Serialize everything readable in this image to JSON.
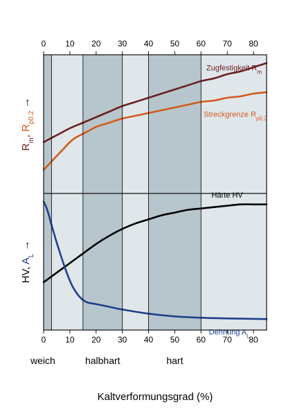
{
  "chart_data": {
    "type": "line",
    "title": "",
    "xlabel": "Kaltverformungsgrad (%)",
    "xlim": [
      0,
      85
    ],
    "x_ticks": [
      0,
      10,
      20,
      30,
      40,
      50,
      60,
      70,
      80
    ],
    "grid": false,
    "bands": [
      {
        "from": 0,
        "to": 3,
        "shade": "dark"
      },
      {
        "from": 3,
        "to": 15,
        "shade": "light"
      },
      {
        "from": 15,
        "to": 30,
        "shade": "dark"
      },
      {
        "from": 30,
        "to": 40,
        "shade": "light"
      },
      {
        "from": 40,
        "to": 60,
        "shade": "dark"
      },
      {
        "from": 60,
        "to": 85,
        "shade": "light"
      }
    ],
    "band_colors": {
      "dark": "#b7c6cd",
      "light": "#dfe7eb"
    },
    "regions": [
      {
        "label": "weich",
        "x": 0
      },
      {
        "label": "halbhart",
        "x": 22.5
      },
      {
        "label": "hart",
        "x": 50
      }
    ],
    "panels": [
      {
        "ylabel": {
          "arrow": "→",
          "parts": [
            {
              "t": "R",
              "style": "normal",
              "color": "#6b2020"
            },
            {
              "t": "m",
              "style": "sub",
              "color": "#6b2020"
            },
            {
              "t": ", ",
              "style": "normal",
              "color": "#6b2020"
            },
            {
              "t": "R",
              "style": "normal",
              "color": "#d4581a"
            },
            {
              "t": "p0.2",
              "style": "sub",
              "color": "#d4581a"
            }
          ]
        },
        "series": [
          {
            "name": "Zugfestigkeit Rm",
            "label_main": "Zugfestigkeit R",
            "label_sub": "m",
            "label_x": 62,
            "color": "#6b2020",
            "x": [
              0,
              5,
              10,
              15,
              20,
              25,
              30,
              35,
              40,
              45,
              50,
              55,
              60,
              65,
              70,
              75,
              80,
              85
            ],
            "y": [
              0.37,
              0.42,
              0.47,
              0.51,
              0.55,
              0.59,
              0.63,
              0.66,
              0.69,
              0.72,
              0.75,
              0.78,
              0.81,
              0.83,
              0.86,
              0.88,
              0.91,
              0.94
            ]
          },
          {
            "name": "Streckgrenze Rp0.2",
            "label_main": "Streckgrenze R",
            "label_sub": "p0.2",
            "label_x": 61,
            "color": "#d4581a",
            "x": [
              0,
              2,
              5,
              8,
              10,
              12,
              15,
              18,
              20,
              25,
              30,
              35,
              40,
              45,
              50,
              55,
              60,
              65,
              70,
              75,
              80,
              85
            ],
            "y": [
              0.17,
              0.21,
              0.27,
              0.33,
              0.37,
              0.4,
              0.43,
              0.46,
              0.48,
              0.51,
              0.54,
              0.56,
              0.58,
              0.6,
              0.62,
              0.64,
              0.66,
              0.67,
              0.69,
              0.7,
              0.72,
              0.73
            ]
          }
        ]
      },
      {
        "ylabel": {
          "arrow": "→",
          "parts": [
            {
              "t": "HV, ",
              "style": "normal",
              "color": "#000000"
            },
            {
              "t": "A",
              "style": "normal",
              "color": "#1f3f8a"
            },
            {
              "t": "L",
              "style": "sub",
              "color": "#1f3f8a"
            }
          ]
        },
        "series": [
          {
            "name": "Härte HV",
            "label_main": "Härte HV",
            "label_sub": "",
            "label_x": 64,
            "color": "#000000",
            "x": [
              0,
              5,
              10,
              15,
              20,
              25,
              30,
              35,
              40,
              45,
              50,
              55,
              60,
              65,
              70,
              75,
              80,
              85
            ],
            "y": [
              0.35,
              0.42,
              0.49,
              0.56,
              0.63,
              0.69,
              0.74,
              0.78,
              0.81,
              0.84,
              0.86,
              0.88,
              0.89,
              0.9,
              0.91,
              0.92,
              0.92,
              0.92
            ]
          },
          {
            "name": "Dehnung AL",
            "label_main": "Dehnung A",
            "label_sub": "L",
            "label_x": 63,
            "color": "#1f3f8a",
            "x": [
              0,
              1,
              2,
              3,
              5,
              7,
              9,
              11,
              13,
              15,
              17,
              20,
              25,
              30,
              40,
              50,
              60,
              70,
              85
            ],
            "y": [
              0.94,
              0.9,
              0.84,
              0.77,
              0.64,
              0.52,
              0.41,
              0.32,
              0.26,
              0.22,
              0.2,
              0.19,
              0.17,
              0.15,
              0.12,
              0.1,
              0.09,
              0.085,
              0.08
            ]
          }
        ]
      }
    ]
  }
}
